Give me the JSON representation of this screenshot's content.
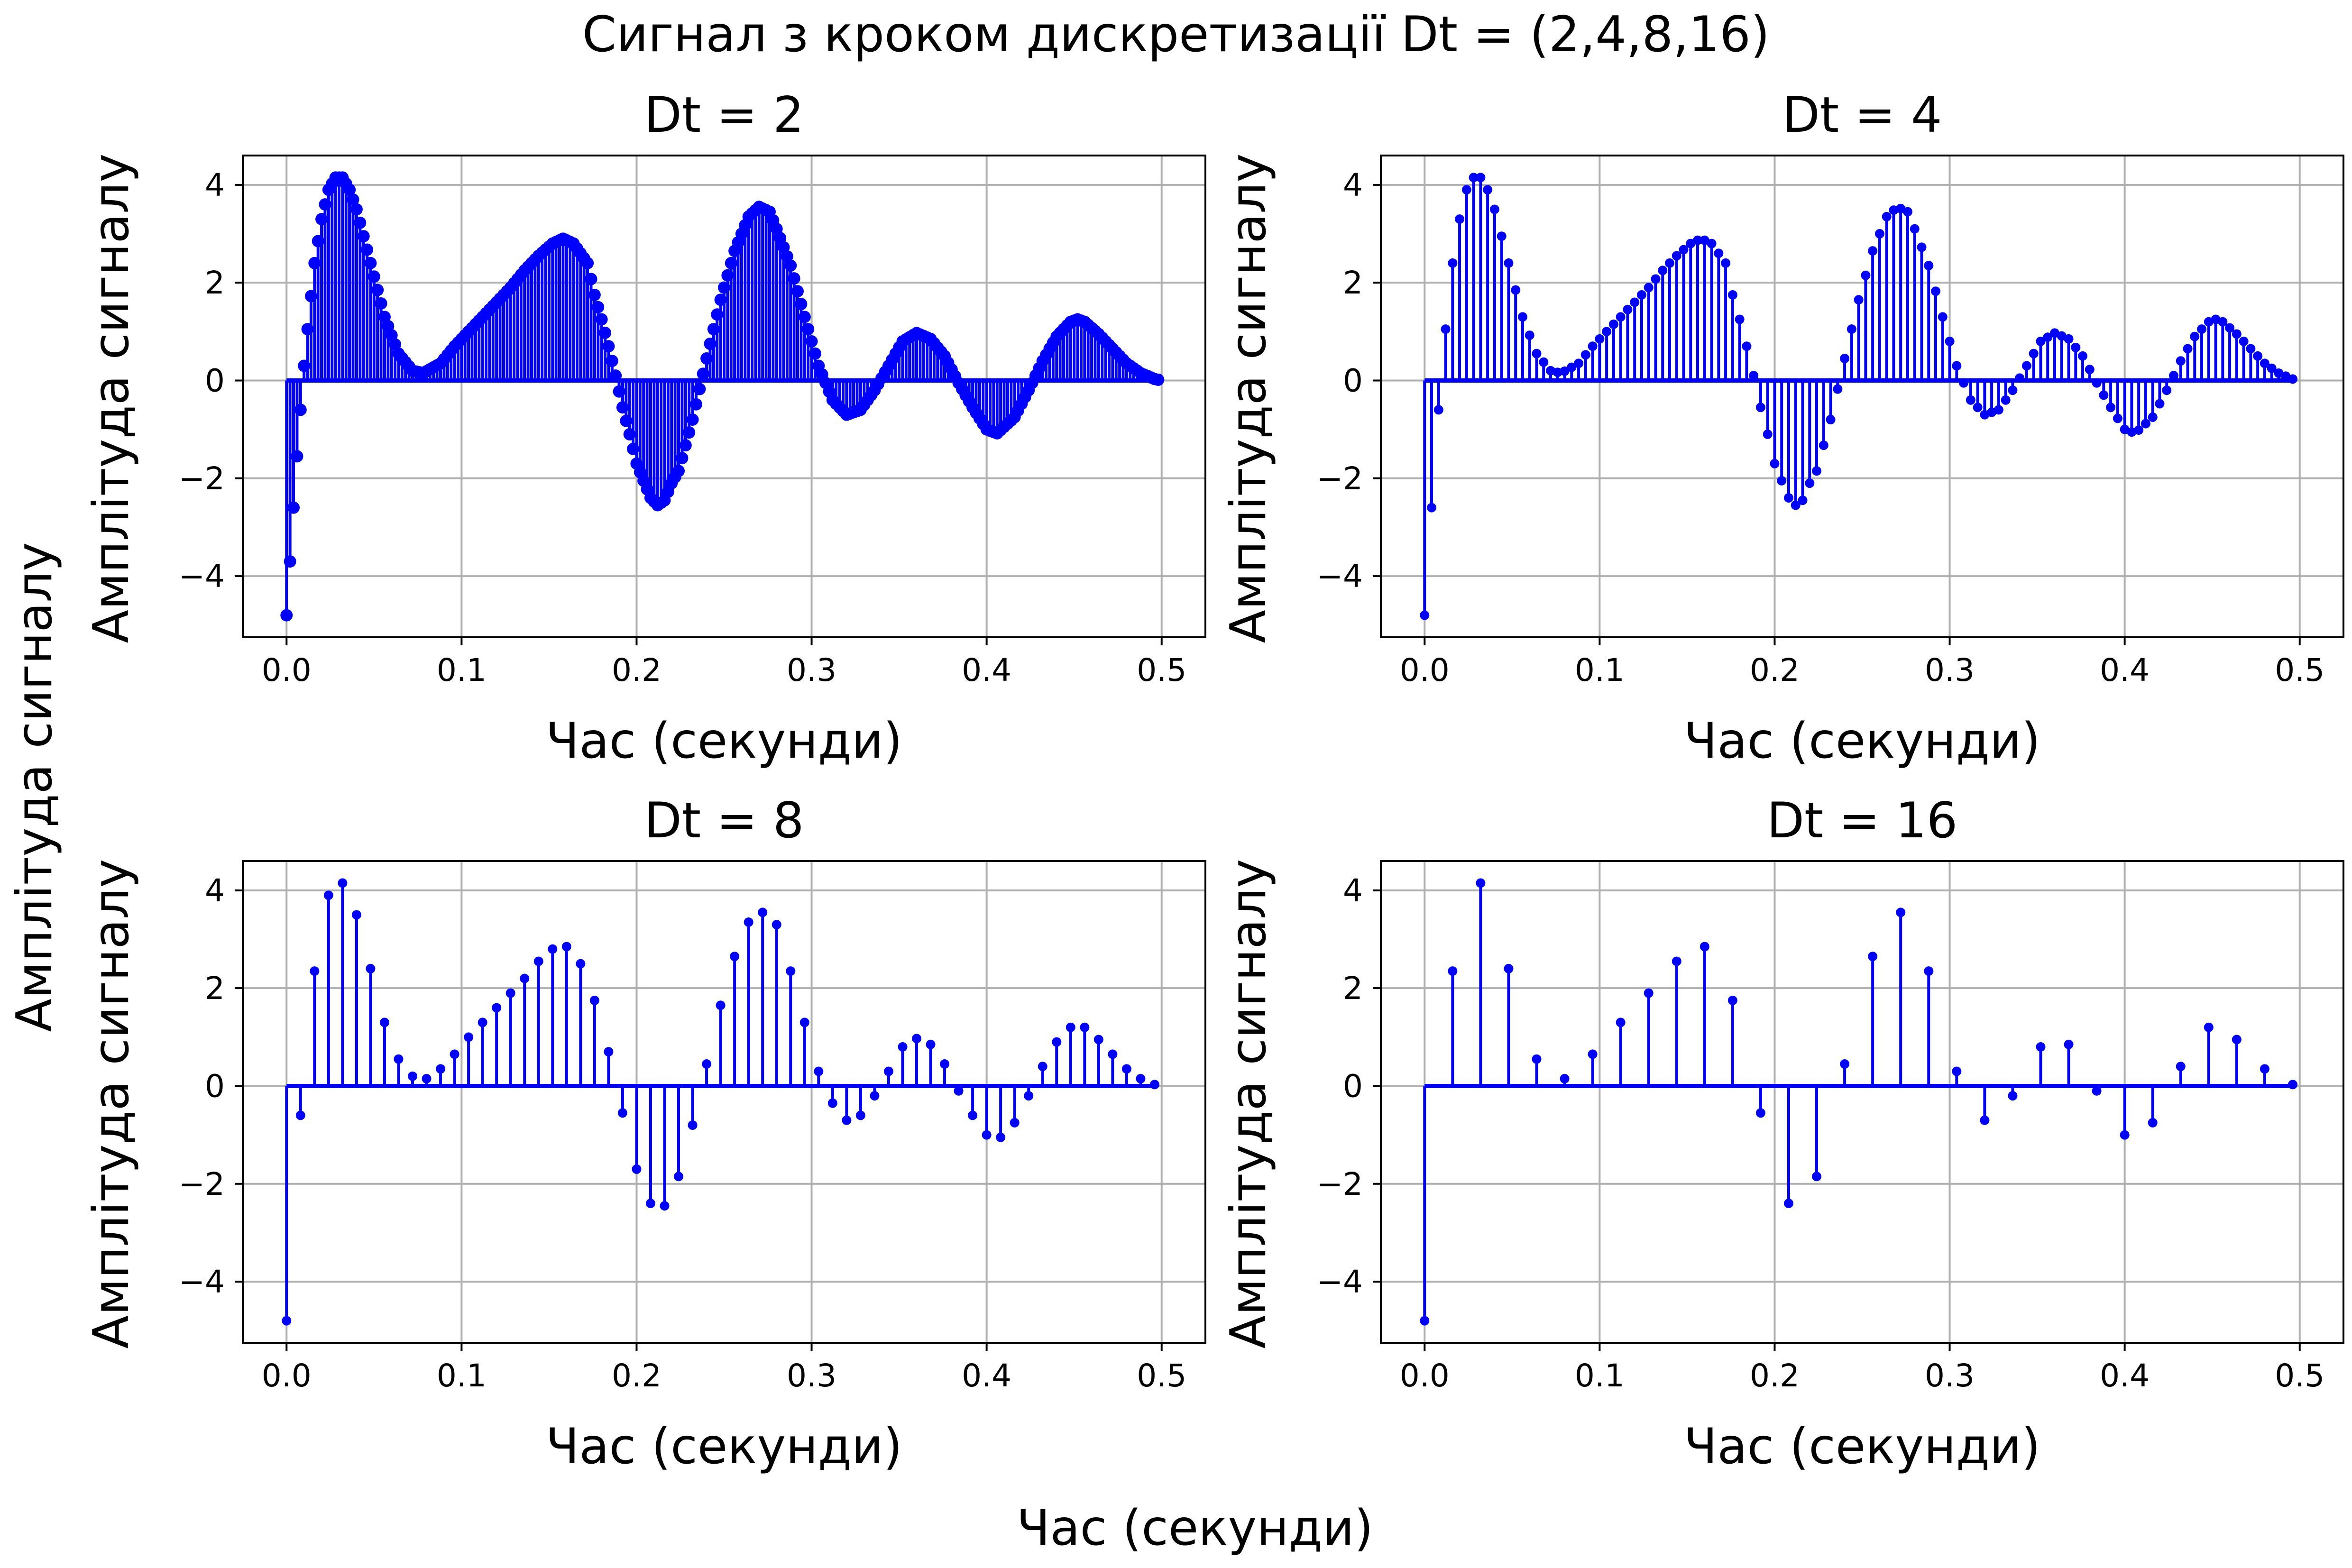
{
  "figure": {
    "suptitle": "Сигнал з кроком дискретизації Dt = (2,4,8,16)",
    "supxlabel": "Час (секунди)",
    "supylabel": "Амплітуда сигналу"
  },
  "style": {
    "stem_color": "#0000ff",
    "grid_color": "#b0b0b0",
    "axes_color": "#000000",
    "background": "#ffffff"
  },
  "chart_data": [
    {
      "type": "stem",
      "title": "Dt = 2",
      "xlabel": "Час (секунди)",
      "ylabel": "Амплітуда сигналу",
      "xlim": [
        -0.025,
        0.525
      ],
      "ylim": [
        -5.25,
        4.6
      ],
      "xticks": [
        0.0,
        0.1,
        0.2,
        0.3,
        0.4,
        0.5
      ],
      "xtick_labels": [
        "0.0",
        "0.1",
        "0.2",
        "0.3",
        "0.4",
        "0.5"
      ],
      "yticks": [
        -4,
        -2,
        0,
        2,
        4
      ],
      "ytick_labels": [
        "−4",
        "−2",
        "0",
        "2",
        "4"
      ],
      "grid": true,
      "sample_step_s": 0.002,
      "t_end_s": 0.5,
      "envelope_points": [
        [
          0.0,
          -4.8
        ],
        [
          0.002,
          -3.7
        ],
        [
          0.004,
          -2.6
        ],
        [
          0.006,
          -1.55
        ],
        [
          0.008,
          -0.6
        ],
        [
          0.01,
          0.3
        ],
        [
          0.012,
          1.05
        ],
        [
          0.016,
          2.4
        ],
        [
          0.02,
          3.3
        ],
        [
          0.024,
          3.9
        ],
        [
          0.028,
          4.15
        ],
        [
          0.032,
          4.15
        ],
        [
          0.036,
          3.9
        ],
        [
          0.04,
          3.5
        ],
        [
          0.048,
          2.4
        ],
        [
          0.056,
          1.3
        ],
        [
          0.064,
          0.55
        ],
        [
          0.072,
          0.2
        ],
        [
          0.078,
          0.15
        ],
        [
          0.088,
          0.35
        ],
        [
          0.096,
          0.7
        ],
        [
          0.104,
          1.0
        ],
        [
          0.112,
          1.3
        ],
        [
          0.12,
          1.6
        ],
        [
          0.128,
          1.9
        ],
        [
          0.136,
          2.25
        ],
        [
          0.144,
          2.55
        ],
        [
          0.152,
          2.8
        ],
        [
          0.158,
          2.9
        ],
        [
          0.164,
          2.8
        ],
        [
          0.172,
          2.4
        ],
        [
          0.176,
          1.75
        ],
        [
          0.18,
          1.25
        ],
        [
          0.184,
          0.7
        ],
        [
          0.188,
          0.1
        ],
        [
          0.192,
          -0.55
        ],
        [
          0.196,
          -1.1
        ],
        [
          0.2,
          -1.7
        ],
        [
          0.208,
          -2.4
        ],
        [
          0.212,
          -2.55
        ],
        [
          0.216,
          -2.45
        ],
        [
          0.22,
          -2.1
        ],
        [
          0.224,
          -1.85
        ],
        [
          0.232,
          -0.8
        ],
        [
          0.24,
          0.45
        ],
        [
          0.248,
          1.65
        ],
        [
          0.256,
          2.65
        ],
        [
          0.264,
          3.35
        ],
        [
          0.27,
          3.55
        ],
        [
          0.276,
          3.45
        ],
        [
          0.28,
          3.1
        ],
        [
          0.288,
          2.35
        ],
        [
          0.296,
          1.3
        ],
        [
          0.304,
          0.3
        ],
        [
          0.312,
          -0.4
        ],
        [
          0.32,
          -0.7
        ],
        [
          0.328,
          -0.6
        ],
        [
          0.336,
          -0.2
        ],
        [
          0.344,
          0.3
        ],
        [
          0.352,
          0.8
        ],
        [
          0.36,
          0.97
        ],
        [
          0.368,
          0.85
        ],
        [
          0.376,
          0.5
        ],
        [
          0.384,
          -0.05
        ],
        [
          0.392,
          -0.55
        ],
        [
          0.4,
          -1.0
        ],
        [
          0.406,
          -1.08
        ],
        [
          0.416,
          -0.75
        ],
        [
          0.424,
          -0.2
        ],
        [
          0.432,
          0.4
        ],
        [
          0.44,
          0.9
        ],
        [
          0.448,
          1.2
        ],
        [
          0.452,
          1.25
        ],
        [
          0.456,
          1.2
        ],
        [
          0.464,
          0.95
        ],
        [
          0.472,
          0.65
        ],
        [
          0.48,
          0.35
        ],
        [
          0.488,
          0.15
        ],
        [
          0.496,
          0.03
        ],
        [
          0.5,
          0.0
        ]
      ]
    },
    {
      "type": "stem",
      "title": "Dt = 4",
      "xlabel": "Час (секунди)",
      "ylabel": "Амплітуда сигналу",
      "xlim": [
        -0.025,
        0.525
      ],
      "ylim": [
        -5.25,
        4.6
      ],
      "xticks": [
        0.0,
        0.1,
        0.2,
        0.3,
        0.4,
        0.5
      ],
      "xtick_labels": [
        "0.0",
        "0.1",
        "0.2",
        "0.3",
        "0.4",
        "0.5"
      ],
      "yticks": [
        -4,
        -2,
        0,
        2,
        4
      ],
      "ytick_labels": [
        "−4",
        "−2",
        "0",
        "2",
        "4"
      ],
      "grid": true,
      "sample_step_s": 0.004,
      "t_end_s": 0.5
    },
    {
      "type": "stem",
      "title": "Dt = 8",
      "xlabel": "Час (секунди)",
      "ylabel": "Амплітуда сигналу",
      "xlim": [
        -0.025,
        0.525
      ],
      "ylim": [
        -5.25,
        4.6
      ],
      "xticks": [
        0.0,
        0.1,
        0.2,
        0.3,
        0.4,
        0.5
      ],
      "xtick_labels": [
        "0.0",
        "0.1",
        "0.2",
        "0.3",
        "0.4",
        "0.5"
      ],
      "yticks": [
        -4,
        -2,
        0,
        2,
        4
      ],
      "ytick_labels": [
        "−4",
        "−2",
        "0",
        "2",
        "4"
      ],
      "grid": true,
      "x": [
        0.0,
        0.008,
        0.016,
        0.024,
        0.032,
        0.04,
        0.048,
        0.056,
        0.064,
        0.072,
        0.08,
        0.088,
        0.096,
        0.104,
        0.112,
        0.12,
        0.128,
        0.136,
        0.144,
        0.152,
        0.16,
        0.168,
        0.176,
        0.184,
        0.192,
        0.2,
        0.208,
        0.216,
        0.224,
        0.232,
        0.24,
        0.248,
        0.256,
        0.264,
        0.272,
        0.28,
        0.288,
        0.296,
        0.304,
        0.312,
        0.32,
        0.328,
        0.336,
        0.344,
        0.352,
        0.36,
        0.368,
        0.376,
        0.384,
        0.392,
        0.4,
        0.408,
        0.416,
        0.424,
        0.432,
        0.44,
        0.448,
        0.456,
        0.464,
        0.472,
        0.48,
        0.488,
        0.496
      ],
      "y": [
        -4.8,
        -0.6,
        2.35,
        3.9,
        4.15,
        3.5,
        2.4,
        1.3,
        0.55,
        0.2,
        0.15,
        0.35,
        0.65,
        1.0,
        1.3,
        1.6,
        1.9,
        2.2,
        2.55,
        2.8,
        2.85,
        2.5,
        1.75,
        0.7,
        -0.55,
        -1.7,
        -2.4,
        -2.45,
        -1.85,
        -0.8,
        0.45,
        1.65,
        2.65,
        3.35,
        3.55,
        3.3,
        2.35,
        1.3,
        0.3,
        -0.35,
        -0.7,
        -0.6,
        -0.2,
        0.3,
        0.8,
        0.97,
        0.85,
        0.45,
        -0.1,
        -0.6,
        -1.0,
        -1.05,
        -0.75,
        -0.2,
        0.4,
        0.9,
        1.2,
        1.2,
        0.95,
        0.65,
        0.35,
        0.15,
        0.03
      ]
    },
    {
      "type": "stem",
      "title": "Dt = 16",
      "xlabel": "Час (секунди)",
      "ylabel": "Амплітуда сигналу",
      "xlim": [
        -0.025,
        0.525
      ],
      "ylim": [
        -5.25,
        4.6
      ],
      "xticks": [
        0.0,
        0.1,
        0.2,
        0.3,
        0.4,
        0.5
      ],
      "xtick_labels": [
        "0.0",
        "0.1",
        "0.2",
        "0.3",
        "0.4",
        "0.5"
      ],
      "yticks": [
        -4,
        -2,
        0,
        2,
        4
      ],
      "ytick_labels": [
        "−4",
        "−2",
        "0",
        "2",
        "4"
      ],
      "grid": true,
      "x": [
        0.0,
        0.016,
        0.032,
        0.048,
        0.064,
        0.08,
        0.096,
        0.112,
        0.128,
        0.144,
        0.16,
        0.176,
        0.192,
        0.208,
        0.224,
        0.24,
        0.256,
        0.272,
        0.288,
        0.304,
        0.32,
        0.336,
        0.352,
        0.368,
        0.384,
        0.4,
        0.416,
        0.432,
        0.448,
        0.464,
        0.48,
        0.496
      ],
      "y": [
        -4.8,
        2.35,
        4.15,
        2.4,
        0.55,
        0.15,
        0.65,
        1.3,
        1.9,
        2.55,
        2.85,
        1.75,
        -0.55,
        -2.4,
        -1.85,
        0.45,
        2.65,
        3.55,
        2.35,
        0.3,
        -0.7,
        -0.2,
        0.8,
        0.85,
        -0.1,
        -1.0,
        -0.75,
        0.4,
        1.2,
        0.95,
        0.35,
        0.03
      ]
    }
  ]
}
